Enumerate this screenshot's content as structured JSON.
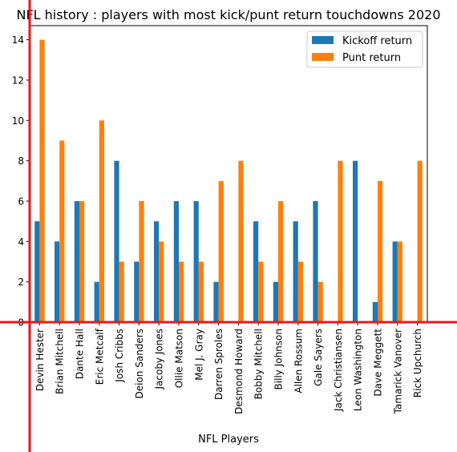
{
  "chart_data": {
    "type": "bar",
    "title": "NFL history : players with most kick/punt return touchdowns 2020",
    "xlabel": "NFL Players",
    "ylabel": "",
    "ylim": [
      0,
      14.7
    ],
    "yticks": [
      0,
      2,
      4,
      6,
      8,
      10,
      12,
      14
    ],
    "legend_position": "top-right",
    "categories": [
      "Devin Hester",
      "Brian Mitchell",
      "Dante Hall",
      "Eric Metcalf",
      "Josh Cribbs",
      "Deion Sanders",
      "Jacoby Jones",
      "Ollie Matson",
      "Mel J. Gray",
      "Darren Sproles",
      "Desmond Howard",
      "Bobby Mitchell",
      "Billy Johnson",
      "Allen Rossum",
      "Gale Sayers",
      "Jack Christiansen",
      "Leon Washington",
      "Dave Meggett",
      "Tamarick Vanover",
      "Rick Upchurch"
    ],
    "series": [
      {
        "name": "Kickoff return",
        "color": "#1f77b4",
        "values": [
          5,
          4,
          6,
          2,
          8,
          3,
          5,
          6,
          6,
          2,
          0,
          5,
          2,
          5,
          6,
          0,
          8,
          1,
          4,
          0
        ]
      },
      {
        "name": "Punt return",
        "color": "#ff7f0e",
        "values": [
          14,
          9,
          6,
          10,
          3,
          6,
          4,
          3,
          3,
          7,
          8,
          3,
          6,
          3,
          2,
          8,
          0,
          7,
          4,
          8
        ]
      }
    ],
    "annotation_line_color": "#e8191f"
  }
}
